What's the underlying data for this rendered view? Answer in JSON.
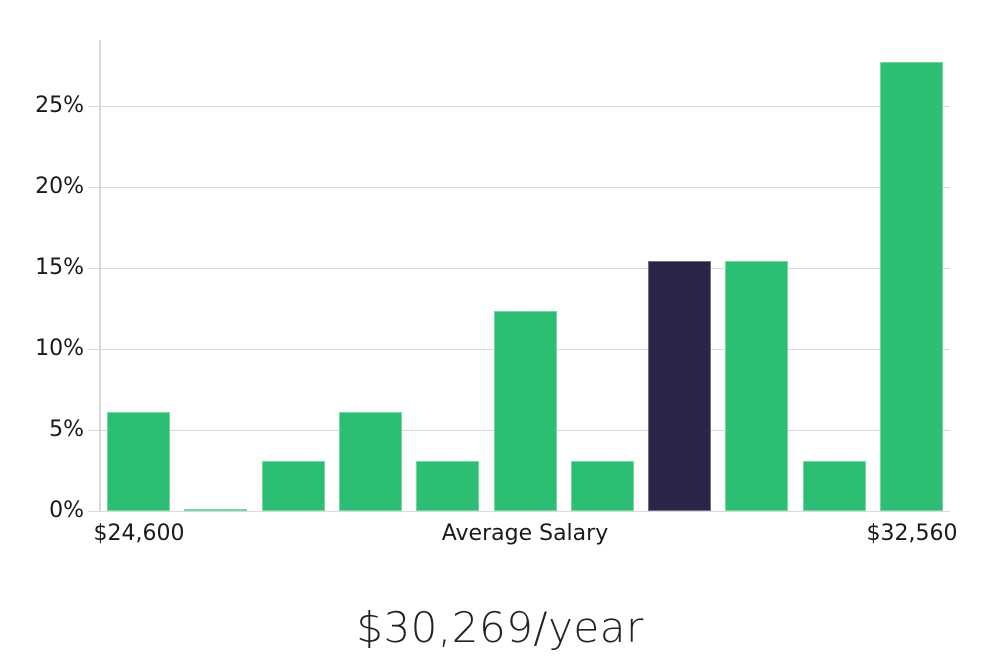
{
  "chart_data": {
    "type": "bar",
    "title": "$30,269/year",
    "xlabel": "",
    "ylabel": "",
    "ylim": [
      0,
      29
    ],
    "grid": true,
    "legend_position": "none",
    "y_ticks": [
      {
        "label": "0%",
        "value": 0
      },
      {
        "label": "5%",
        "value": 5
      },
      {
        "label": "10%",
        "value": 10
      },
      {
        "label": "15%",
        "value": 15
      },
      {
        "label": "20%",
        "value": 20
      },
      {
        "label": "25%",
        "value": 25
      }
    ],
    "bars": [
      {
        "value": 6.1,
        "role": "normal"
      },
      {
        "value": 0.1,
        "role": "normal"
      },
      {
        "value": 3.1,
        "role": "normal"
      },
      {
        "value": 6.1,
        "role": "normal"
      },
      {
        "value": 3.1,
        "role": "normal"
      },
      {
        "value": 12.3,
        "role": "normal"
      },
      {
        "value": 3.1,
        "role": "normal"
      },
      {
        "value": 15.4,
        "role": "highlight"
      },
      {
        "value": 15.4,
        "role": "normal"
      },
      {
        "value": 3.1,
        "role": "normal"
      },
      {
        "value": 27.7,
        "role": "normal"
      }
    ],
    "x_ticks": [
      {
        "label": "$24,600",
        "bar_index": 0
      },
      {
        "label": "Average Salary",
        "bar_index": 5
      },
      {
        "label": "$32,560",
        "bar_index": 10
      }
    ],
    "colors": {
      "bar": "#2cbe73",
      "highlight": "#2a2449",
      "grid": "#d9d9d9",
      "axis": "#d9d9d9",
      "text": "#1a1a1a"
    }
  }
}
